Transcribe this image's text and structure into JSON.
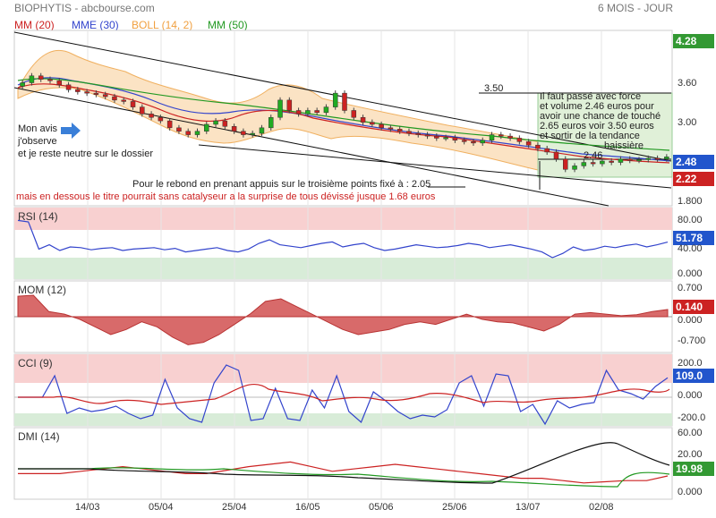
{
  "header": {
    "title": "BIOPHYTIS - abcbourse.com",
    "period": "6 MOIS - JOUR"
  },
  "legend": [
    {
      "label": "MM (20)",
      "color": "#cc2222"
    },
    {
      "label": "MME (30)",
      "color": "#3344cc"
    },
    {
      "label": "BOLL (14, 2)",
      "color": "#f0a040"
    },
    {
      "label": "MM (50)",
      "color": "#229922"
    }
  ],
  "annotations": {
    "left_note": [
      "Mon avis",
      "j'observe",
      "et je reste neutre sur le dossier"
    ],
    "rebound": "Pour le rebond en prenant appuis sur le troisième points fixé à : 2.05",
    "warning": "mais en dessous le titre pourrait sans catalyseur a la surprise de tous dévissé jusque 1.68 euros",
    "target_label": "3.50",
    "level_label": "2.46",
    "box_text": [
      "Il faut passé avec force",
      "et volume 2.46 euros pour",
      "avoir une chance de touché",
      "2.65 euros voir 3.50 euros",
      "et sortir de la tendance",
      "baissière"
    ]
  },
  "badges": {
    "price_top": "4.28",
    "price_last": "2.48",
    "price_low": "2.22",
    "rsi": "51.78",
    "mom": "0.140",
    "cci": "109.0",
    "dmi": "19.98"
  },
  "colors": {
    "up": "#22aa22",
    "down": "#cc2222",
    "boll_fill": "#fbe3c4",
    "zone_red": "#f8d0d0",
    "zone_green": "#d8ecd8"
  },
  "chart_data": [
    {
      "type": "candlestick",
      "ylim": [
        1.8,
        4.28
      ],
      "yticks": [
        "3.60",
        "3.00",
        "1.800"
      ],
      "xlabels": [
        "14/03",
        "05/04",
        "25/04",
        "16/05",
        "05/06",
        "25/06",
        "13/07",
        "02/08"
      ],
      "close": [
        3.55,
        3.65,
        3.6,
        3.58,
        3.52,
        3.45,
        3.42,
        3.4,
        3.38,
        3.35,
        3.3,
        3.28,
        3.2,
        3.1,
        3.05,
        3.0,
        2.9,
        2.85,
        2.8,
        2.85,
        2.95,
        3.0,
        2.92,
        2.85,
        2.8,
        2.82,
        2.9,
        3.05,
        3.3,
        3.15,
        3.1,
        3.15,
        3.12,
        3.2,
        3.4,
        3.15,
        3.05,
        2.98,
        2.95,
        2.9,
        2.88,
        2.85,
        2.82,
        2.8,
        2.78,
        2.75,
        2.76,
        2.72,
        2.7,
        2.68,
        2.72,
        2.8,
        2.78,
        2.75,
        2.7,
        2.65,
        2.6,
        2.55,
        2.45,
        2.3,
        2.35,
        2.4,
        2.38,
        2.42,
        2.4,
        2.45,
        2.43,
        2.44,
        2.46,
        2.45,
        2.48
      ]
    },
    {
      "type": "line",
      "name": "RSI (14)",
      "ylim": [
        0,
        100
      ],
      "yticks": [
        "80.00",
        "40.00",
        "0.000"
      ],
      "values": [
        82,
        80,
        42,
        48,
        40,
        45,
        44,
        41,
        43,
        44,
        40,
        42,
        43,
        44,
        41,
        43,
        38,
        40,
        42,
        44,
        40,
        38,
        42,
        50,
        55,
        48,
        46,
        44,
        47,
        50,
        52,
        45,
        48,
        50,
        44,
        40,
        42,
        45,
        48,
        46,
        44,
        45,
        47,
        50,
        48,
        44,
        46,
        48,
        45,
        42,
        38,
        30,
        36,
        45,
        40,
        42,
        46,
        44,
        47,
        49,
        45,
        48,
        51.78
      ]
    },
    {
      "type": "area",
      "name": "MOM (12)",
      "ylim": [
        -0.7,
        0.7
      ],
      "yticks": [
        "0.700",
        "0.000",
        "-0.700"
      ],
      "values": [
        0.4,
        0.42,
        0.1,
        0.05,
        -0.05,
        -0.2,
        -0.35,
        -0.25,
        -0.1,
        -0.2,
        -0.4,
        -0.55,
        -0.5,
        -0.35,
        -0.15,
        0.05,
        0.3,
        0.35,
        0.2,
        0.05,
        -0.1,
        -0.25,
        -0.35,
        -0.3,
        -0.25,
        -0.15,
        -0.1,
        -0.15,
        -0.05,
        0.05,
        -0.05,
        -0.1,
        -0.12,
        -0.2,
        -0.28,
        -0.15,
        0.05,
        0.08,
        0.05,
        0.02,
        0.04,
        0.1,
        0.14
      ]
    },
    {
      "type": "line",
      "name": "CCI (9)",
      "ylim": [
        -200,
        200
      ],
      "yticks": [
        "200.0",
        "0.000",
        "-200.0"
      ],
      "values": [
        0,
        0,
        0,
        120,
        -90,
        -60,
        -80,
        -70,
        -50,
        -90,
        -120,
        -100,
        100,
        -60,
        -120,
        -140,
        80,
        180,
        150,
        -130,
        -120,
        50,
        -120,
        -130,
        40,
        -60,
        120,
        -80,
        -140,
        30,
        -20,
        -80,
        -120,
        -100,
        -110,
        -70,
        80,
        120,
        -50,
        130,
        120,
        -80,
        -40,
        -150,
        -20,
        -60,
        -40,
        -30,
        150,
        40,
        20,
        -10,
        60,
        109.0
      ]
    },
    {
      "type": "line",
      "name": "DMI (14)",
      "ylim": [
        0,
        60
      ],
      "yticks": [
        "60.00",
        "20.00",
        "0.000"
      ],
      "values": [
        22,
        22,
        22,
        24,
        26,
        28,
        26,
        24,
        22,
        22,
        25,
        28,
        30,
        32,
        28,
        24,
        26,
        28,
        30,
        28,
        26,
        24,
        22,
        20,
        18,
        18,
        16,
        14,
        15,
        16,
        16,
        19.98
      ]
    }
  ]
}
